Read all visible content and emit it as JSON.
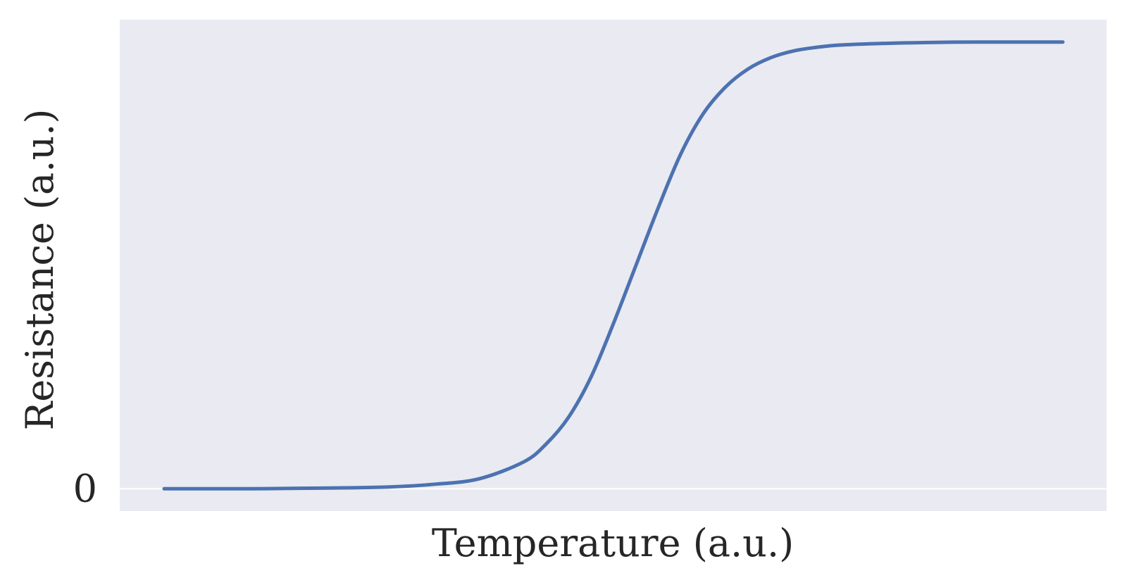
{
  "chart_data": {
    "type": "line",
    "title": "",
    "xlabel": "Temperature (a.u.)",
    "ylabel": "Resistance (a.u.)",
    "x_tick_labels": [],
    "y_tick_labels": [
      "0"
    ],
    "xlim": [
      0,
      1
    ],
    "ylim": [
      -0.05,
      1.05
    ],
    "grid": true,
    "legend": "none",
    "colors": {
      "background": "#ffffff",
      "plot_area": "#eaeaf2",
      "grid": "#ffffff",
      "line": "#4c72b0",
      "text": "#262626"
    },
    "series": [
      {
        "x": [
          0.0,
          0.05,
          0.1,
          0.15,
          0.2,
          0.25,
          0.3,
          0.35,
          0.4,
          0.425,
          0.45,
          0.475,
          0.5,
          0.525,
          0.55,
          0.575,
          0.6,
          0.625,
          0.65,
          0.675,
          0.7,
          0.725,
          0.75,
          0.8,
          0.85,
          0.9,
          0.95,
          1.0
        ],
        "y": [
          0.0,
          0.0,
          0.0,
          0.001,
          0.002,
          0.004,
          0.01,
          0.022,
          0.06,
          0.1,
          0.16,
          0.25,
          0.37,
          0.5,
          0.63,
          0.75,
          0.84,
          0.9,
          0.94,
          0.965,
          0.98,
          0.988,
          0.993,
          0.997,
          0.999,
          1.0,
          1.0,
          1.0
        ]
      }
    ]
  }
}
